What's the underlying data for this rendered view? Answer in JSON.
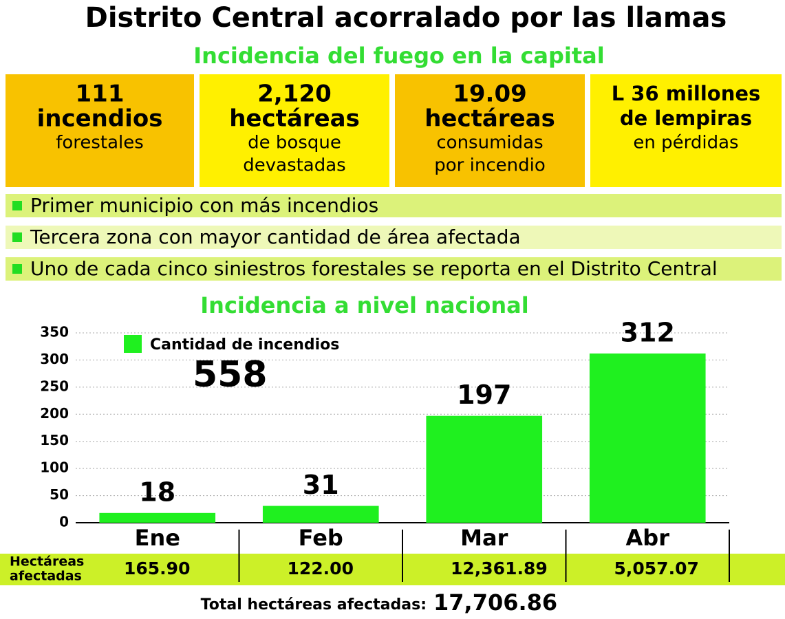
{
  "header": {
    "title": "Distrito Central acorralado por las llamas",
    "subtitle": "Incidencia del fuego en la capital"
  },
  "stats": [
    {
      "bold": [
        "111",
        "incendios"
      ],
      "text": [
        "forestales"
      ]
    },
    {
      "bold": [
        "2,120",
        "hectáreas"
      ],
      "text": [
        "de bosque",
        "devastadas"
      ]
    },
    {
      "bold": [
        "19.09",
        "hectáreas"
      ],
      "text": [
        "consumidas",
        "por incendio"
      ]
    },
    {
      "bold": [
        "L 36 millones",
        "de lempiras"
      ],
      "text": [
        "en pérdidas"
      ]
    }
  ],
  "bullets": [
    "Primer municipio con más incendios",
    "Tercera zona con mayor cantidad de área afectada",
    "Uno de cada cinco siniestros forestales se reporta en el Distrito Central"
  ],
  "chart_data": {
    "type": "bar",
    "title": "Incidencia a nivel nacional",
    "categories": [
      "Ene",
      "Feb",
      "Mar",
      "Abr"
    ],
    "series": [
      {
        "name": "Cantidad de incendios",
        "color": "#1ff01f",
        "values": [
          18,
          31,
          197,
          312
        ]
      }
    ],
    "total": "558",
    "ylim": [
      0,
      350
    ],
    "yticks": [
      0,
      50,
      100,
      150,
      200,
      250,
      300,
      350
    ],
    "grid": true
  },
  "hectareas": {
    "label": [
      "Hectáreas",
      "afectadas"
    ],
    "values": [
      "165.90",
      "122.00",
      "12,361.89",
      "5,057.07"
    ],
    "total_label": "Total hectáreas afectadas:",
    "total": "17,706.86"
  }
}
